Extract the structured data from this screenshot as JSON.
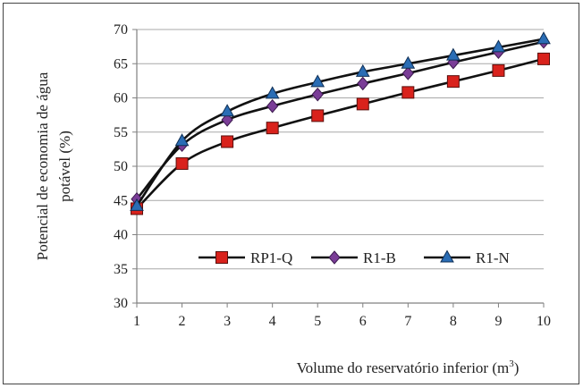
{
  "chart_data": {
    "type": "line",
    "x": [
      1,
      2,
      3,
      4,
      5,
      6,
      7,
      8,
      9,
      10
    ],
    "xlabel_main": "Volume do reservatório inferior (m",
    "xlabel_sup": "3",
    "xlabel_end": ")",
    "ylabel_line1": "Potencial de economia de água",
    "ylabel_line2": "potável (%)",
    "ylim": [
      30,
      70
    ],
    "yticks": [
      30,
      35,
      40,
      45,
      50,
      55,
      60,
      65,
      70
    ],
    "xticks": [
      1,
      2,
      3,
      4,
      5,
      6,
      7,
      8,
      9,
      10
    ],
    "grid": "horizontal",
    "legend_position": "center-right",
    "series": [
      {
        "name": "RP1-Q",
        "marker": "square",
        "color": "#d9221c",
        "values": [
          43.8,
          50.4,
          53.6,
          55.6,
          57.4,
          59.1,
          60.8,
          62.4,
          64.0,
          65.7
        ]
      },
      {
        "name": "R1-B",
        "marker": "diamond",
        "color": "#7a3d97",
        "values": [
          45.2,
          53.1,
          56.8,
          58.8,
          60.5,
          62.1,
          63.6,
          65.2,
          66.7,
          68.2
        ]
      },
      {
        "name": "R1-N",
        "marker": "triangle",
        "color": "#2a6db5",
        "values": [
          44.2,
          53.7,
          58.0,
          60.6,
          62.3,
          63.8,
          65.0,
          66.2,
          67.4,
          68.6
        ]
      }
    ]
  }
}
